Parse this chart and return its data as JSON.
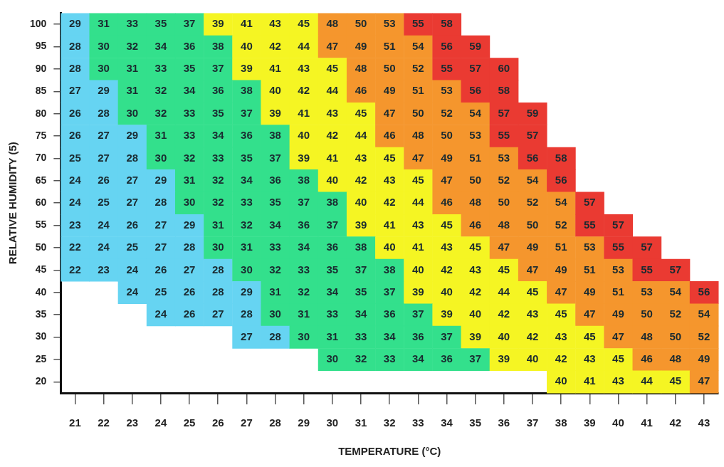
{
  "chart_data": {
    "type": "heatmap",
    "xlabel": "TEMPERATURE (°C)",
    "ylabel": "RELATIVE HUMIDITY (5)",
    "grid": false,
    "data_labels": true,
    "categories": [
      "21",
      "22",
      "23",
      "24",
      "25",
      "26",
      "27",
      "28",
      "29",
      "30",
      "31",
      "32",
      "33",
      "34",
      "35",
      "36",
      "37",
      "38",
      "39",
      "40",
      "41",
      "42",
      "43"
    ],
    "y_categories": [
      "100",
      "95",
      "90",
      "85",
      "80",
      "75",
      "70",
      "65",
      "60",
      "55",
      "50",
      "45",
      "40",
      "35",
      "30",
      "25",
      "20"
    ],
    "cells": [
      [
        29,
        31,
        33,
        35,
        37,
        39,
        41,
        43,
        45,
        48,
        50,
        53,
        55,
        58,
        null,
        null,
        null,
        null,
        null,
        null,
        null,
        null,
        null
      ],
      [
        28,
        30,
        32,
        34,
        36,
        38,
        40,
        42,
        44,
        47,
        49,
        51,
        54,
        56,
        59,
        null,
        null,
        null,
        null,
        null,
        null,
        null,
        null
      ],
      [
        28,
        30,
        31,
        33,
        35,
        37,
        39,
        41,
        43,
        45,
        48,
        50,
        52,
        55,
        57,
        60,
        null,
        null,
        null,
        null,
        null,
        null,
        null
      ],
      [
        27,
        29,
        31,
        32,
        34,
        36,
        38,
        40,
        42,
        44,
        46,
        49,
        51,
        53,
        56,
        58,
        null,
        null,
        null,
        null,
        null,
        null,
        null
      ],
      [
        26,
        28,
        30,
        32,
        33,
        35,
        37,
        39,
        41,
        43,
        45,
        47,
        50,
        52,
        54,
        57,
        59,
        null,
        null,
        null,
        null,
        null,
        null
      ],
      [
        26,
        27,
        29,
        31,
        33,
        34,
        36,
        38,
        40,
        42,
        44,
        46,
        48,
        50,
        53,
        55,
        57,
        null,
        null,
        null,
        null,
        null,
        null
      ],
      [
        25,
        27,
        28,
        30,
        32,
        33,
        35,
        37,
        39,
        41,
        43,
        45,
        47,
        49,
        51,
        53,
        56,
        58,
        null,
        null,
        null,
        null,
        null
      ],
      [
        24,
        26,
        27,
        29,
        31,
        32,
        34,
        36,
        38,
        40,
        42,
        43,
        45,
        47,
        50,
        52,
        54,
        56,
        null,
        null,
        null,
        null,
        null
      ],
      [
        24,
        25,
        27,
        28,
        30,
        32,
        33,
        35,
        37,
        38,
        40,
        42,
        44,
        46,
        48,
        50,
        52,
        54,
        57,
        null,
        null,
        null,
        null
      ],
      [
        23,
        24,
        26,
        27,
        29,
        31,
        32,
        34,
        36,
        37,
        39,
        41,
        43,
        45,
        46,
        48,
        50,
        52,
        55,
        57,
        null,
        null,
        null
      ],
      [
        22,
        24,
        25,
        27,
        28,
        30,
        31,
        33,
        34,
        36,
        38,
        40,
        41,
        43,
        45,
        47,
        49,
        51,
        53,
        55,
        57,
        null,
        null
      ],
      [
        22,
        23,
        24,
        26,
        27,
        28,
        30,
        32,
        33,
        35,
        37,
        38,
        40,
        42,
        43,
        45,
        47,
        49,
        51,
        53,
        55,
        57,
        null
      ],
      [
        null,
        null,
        24,
        25,
        26,
        28,
        29,
        31,
        32,
        34,
        35,
        37,
        39,
        40,
        42,
        44,
        45,
        47,
        49,
        51,
        53,
        54,
        56
      ],
      [
        null,
        null,
        null,
        24,
        26,
        27,
        28,
        30,
        31,
        33,
        34,
        36,
        37,
        39,
        40,
        42,
        43,
        45,
        47,
        49,
        50,
        52,
        54
      ],
      [
        null,
        null,
        null,
        null,
        null,
        null,
        27,
        28,
        30,
        31,
        33,
        34,
        36,
        37,
        39,
        40,
        42,
        43,
        45,
        47,
        48,
        50,
        52
      ],
      [
        null,
        null,
        null,
        null,
        null,
        null,
        null,
        null,
        null,
        30,
        32,
        33,
        34,
        36,
        37,
        39,
        40,
        42,
        43,
        45,
        46,
        48,
        49
      ],
      [
        null,
        null,
        null,
        null,
        null,
        null,
        null,
        null,
        null,
        null,
        null,
        null,
        null,
        null,
        null,
        null,
        null,
        40,
        41,
        43,
        44,
        45,
        47
      ]
    ],
    "colors": [
      [
        "#66d4f2",
        "#33e08c",
        "#33e08c",
        "#33e08c",
        "#33e08c",
        "#f5f523",
        "#f5f523",
        "#f5f523",
        "#f5f523",
        "#f5962d",
        "#f5962d",
        "#f5962d",
        "#ea3a32",
        "#ea3a32",
        null,
        null,
        null,
        null,
        null,
        null,
        null,
        null,
        null
      ],
      [
        "#66d4f2",
        "#33e08c",
        "#33e08c",
        "#33e08c",
        "#33e08c",
        "#33e08c",
        "#f5f523",
        "#f5f523",
        "#f5f523",
        "#f5962d",
        "#f5962d",
        "#f5962d",
        "#f5962d",
        "#ea3a32",
        "#ea3a32",
        null,
        null,
        null,
        null,
        null,
        null,
        null,
        null
      ],
      [
        "#66d4f2",
        "#33e08c",
        "#33e08c",
        "#33e08c",
        "#33e08c",
        "#33e08c",
        "#f5f523",
        "#f5f523",
        "#f5f523",
        "#f5f523",
        "#f5962d",
        "#f5962d",
        "#f5962d",
        "#ea3a32",
        "#ea3a32",
        "#ea3a32",
        null,
        null,
        null,
        null,
        null,
        null,
        null
      ],
      [
        "#66d4f2",
        "#66d4f2",
        "#33e08c",
        "#33e08c",
        "#33e08c",
        "#33e08c",
        "#33e08c",
        "#f5f523",
        "#f5f523",
        "#f5f523",
        "#f5962d",
        "#f5962d",
        "#f5962d",
        "#f5962d",
        "#ea3a32",
        "#ea3a32",
        null,
        null,
        null,
        null,
        null,
        null,
        null
      ],
      [
        "#66d4f2",
        "#66d4f2",
        "#33e08c",
        "#33e08c",
        "#33e08c",
        "#33e08c",
        "#33e08c",
        "#f5f523",
        "#f5f523",
        "#f5f523",
        "#f5f523",
        "#f5962d",
        "#f5962d",
        "#f5962d",
        "#f5962d",
        "#ea3a32",
        "#ea3a32",
        null,
        null,
        null,
        null,
        null,
        null
      ],
      [
        "#66d4f2",
        "#66d4f2",
        "#66d4f2",
        "#33e08c",
        "#33e08c",
        "#33e08c",
        "#33e08c",
        "#33e08c",
        "#f5f523",
        "#f5f523",
        "#f5f523",
        "#f5962d",
        "#f5962d",
        "#f5962d",
        "#f5962d",
        "#ea3a32",
        "#ea3a32",
        null,
        null,
        null,
        null,
        null,
        null
      ],
      [
        "#66d4f2",
        "#66d4f2",
        "#66d4f2",
        "#33e08c",
        "#33e08c",
        "#33e08c",
        "#33e08c",
        "#33e08c",
        "#f5f523",
        "#f5f523",
        "#f5f523",
        "#f5f523",
        "#f5962d",
        "#f5962d",
        "#f5962d",
        "#f5962d",
        "#ea3a32",
        "#ea3a32",
        null,
        null,
        null,
        null,
        null
      ],
      [
        "#66d4f2",
        "#66d4f2",
        "#66d4f2",
        "#66d4f2",
        "#33e08c",
        "#33e08c",
        "#33e08c",
        "#33e08c",
        "#33e08c",
        "#f5f523",
        "#f5f523",
        "#f5f523",
        "#f5f523",
        "#f5962d",
        "#f5962d",
        "#f5962d",
        "#f5962d",
        "#ea3a32",
        null,
        null,
        null,
        null,
        null
      ],
      [
        "#66d4f2",
        "#66d4f2",
        "#66d4f2",
        "#66d4f2",
        "#33e08c",
        "#33e08c",
        "#33e08c",
        "#33e08c",
        "#33e08c",
        "#33e08c",
        "#f5f523",
        "#f5f523",
        "#f5f523",
        "#f5962d",
        "#f5962d",
        "#f5962d",
        "#f5962d",
        "#f5962d",
        "#ea3a32",
        null,
        null,
        null,
        null
      ],
      [
        "#66d4f2",
        "#66d4f2",
        "#66d4f2",
        "#66d4f2",
        "#66d4f2",
        "#33e08c",
        "#33e08c",
        "#33e08c",
        "#33e08c",
        "#33e08c",
        "#f5f523",
        "#f5f523",
        "#f5f523",
        "#f5f523",
        "#f5962d",
        "#f5962d",
        "#f5962d",
        "#f5962d",
        "#ea3a32",
        "#ea3a32",
        null,
        null,
        null
      ],
      [
        "#66d4f2",
        "#66d4f2",
        "#66d4f2",
        "#66d4f2",
        "#66d4f2",
        "#33e08c",
        "#33e08c",
        "#33e08c",
        "#33e08c",
        "#33e08c",
        "#33e08c",
        "#f5f523",
        "#f5f523",
        "#f5f523",
        "#f5f523",
        "#f5962d",
        "#f5962d",
        "#f5962d",
        "#f5962d",
        "#ea3a32",
        "#ea3a32",
        null,
        null
      ],
      [
        "#66d4f2",
        "#66d4f2",
        "#66d4f2",
        "#66d4f2",
        "#66d4f2",
        "#66d4f2",
        "#33e08c",
        "#33e08c",
        "#33e08c",
        "#33e08c",
        "#33e08c",
        "#33e08c",
        "#f5f523",
        "#f5f523",
        "#f5f523",
        "#f5f523",
        "#f5962d",
        "#f5962d",
        "#f5962d",
        "#f5962d",
        "#ea3a32",
        "#ea3a32",
        null
      ],
      [
        null,
        null,
        "#66d4f2",
        "#66d4f2",
        "#66d4f2",
        "#66d4f2",
        "#66d4f2",
        "#33e08c",
        "#33e08c",
        "#33e08c",
        "#33e08c",
        "#33e08c",
        "#f5f523",
        "#f5f523",
        "#f5f523",
        "#f5f523",
        "#f5f523",
        "#f5962d",
        "#f5962d",
        "#f5962d",
        "#f5962d",
        "#f5962d",
        "#ea3a32"
      ],
      [
        null,
        null,
        null,
        "#66d4f2",
        "#66d4f2",
        "#66d4f2",
        "#66d4f2",
        "#33e08c",
        "#33e08c",
        "#33e08c",
        "#33e08c",
        "#33e08c",
        "#33e08c",
        "#f5f523",
        "#f5f523",
        "#f5f523",
        "#f5f523",
        "#f5f523",
        "#f5962d",
        "#f5962d",
        "#f5962d",
        "#f5962d",
        "#f5962d"
      ],
      [
        null,
        null,
        null,
        null,
        null,
        null,
        "#66d4f2",
        "#66d4f2",
        "#33e08c",
        "#33e08c",
        "#33e08c",
        "#33e08c",
        "#33e08c",
        "#33e08c",
        "#f5f523",
        "#f5f523",
        "#f5f523",
        "#f5f523",
        "#f5f523",
        "#f5962d",
        "#f5962d",
        "#f5962d",
        "#f5962d"
      ],
      [
        null,
        null,
        null,
        null,
        null,
        null,
        null,
        null,
        null,
        "#33e08c",
        "#33e08c",
        "#33e08c",
        "#33e08c",
        "#33e08c",
        "#33e08c",
        "#f5f523",
        "#f5f523",
        "#f5f523",
        "#f5f523",
        "#f5f523",
        "#f5962d",
        "#f5962d",
        "#f5962d"
      ],
      [
        null,
        null,
        null,
        null,
        null,
        null,
        null,
        null,
        null,
        null,
        null,
        null,
        null,
        null,
        null,
        null,
        null,
        "#f5f523",
        "#f5f523",
        "#f5f523",
        "#f5f523",
        "#f5f523",
        "#f5962d"
      ]
    ]
  }
}
